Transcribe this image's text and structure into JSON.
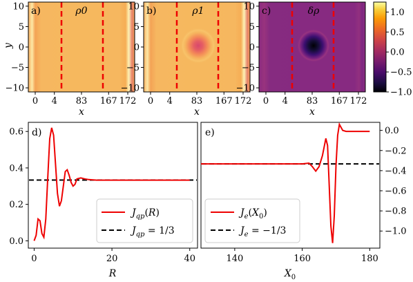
{
  "colors": {
    "curve": "#ee0000",
    "dashed_ref": "#000000",
    "dashed_lines": "#ee0000",
    "cmap": [
      "#000004",
      "#3b0f70",
      "#8c2981",
      "#de4968",
      "#fe9f6d",
      "#fcfdbf"
    ]
  },
  "chart_data": [
    {
      "type": "heatmap",
      "panel_label": "a)",
      "title": "ρ0",
      "xlabel": "x",
      "ylabel": "y",
      "xticks": [
        "0",
        "4",
        "83",
        "167",
        "172"
      ],
      "yticks": [
        -10,
        -5,
        0,
        5,
        10
      ],
      "ylim": [
        -11,
        11
      ],
      "field": "uniform ≈1.0 with bright edge bands near x=0 and x=172",
      "dashed_x": [
        "4",
        "167"
      ],
      "center_value": 1.0
    },
    {
      "type": "heatmap",
      "panel_label": "b)",
      "title": "ρ1",
      "xlabel": "x",
      "xticks": [
        "0",
        "4",
        "83",
        "167",
        "172"
      ],
      "yticks": [
        -10,
        -5,
        0,
        5,
        10
      ],
      "ylim": [
        -11,
        11
      ],
      "dashed_x": [
        "4",
        "167"
      ],
      "center_value": 0.25
    },
    {
      "type": "heatmap",
      "panel_label": "c)",
      "title": "δρ",
      "xlabel": "x",
      "xticks": [
        "0",
        "4",
        "83",
        "167",
        "172"
      ],
      "yticks": [
        -10,
        -5,
        0,
        5,
        10
      ],
      "ylim": [
        -11,
        11
      ],
      "dashed_x": [
        "4",
        "167"
      ],
      "center_value": -1.0,
      "background_value": 0.0
    },
    {
      "type": "colorbar",
      "ticks": [
        "1.0",
        "0.5",
        "0.0",
        "−0.5",
        "−1.0"
      ],
      "tick_values": [
        1.0,
        0.5,
        0.0,
        -0.5,
        -1.0
      ],
      "range": [
        -1.0,
        1.25
      ]
    },
    {
      "type": "line",
      "panel_label": "d)",
      "xlabel": "R",
      "xlim": [
        -1.5,
        42
      ],
      "ylim": [
        -0.04,
        0.65
      ],
      "xticks": [
        "0",
        "20",
        "40"
      ],
      "xtick_values": [
        0,
        20,
        40
      ],
      "yticks": [
        "0.0",
        "0.2",
        "0.4",
        "0.6"
      ],
      "ytick_values": [
        0.0,
        0.2,
        0.4,
        0.6
      ],
      "legend_position": "lower-right",
      "series": [
        {
          "name": "Jqp(R)",
          "x": [
            0,
            0.5,
            1,
            1.5,
            2,
            2.5,
            3,
            3.5,
            4,
            4.5,
            5,
            5.5,
            6,
            6.5,
            7,
            7.5,
            8,
            8.5,
            9,
            9.5,
            10,
            10.5,
            11,
            12,
            13,
            14,
            16,
            18,
            20,
            25,
            30,
            35,
            40
          ],
          "y": [
            0.0,
            0.03,
            0.12,
            0.11,
            0.04,
            0.02,
            0.12,
            0.35,
            0.56,
            0.62,
            0.58,
            0.42,
            0.26,
            0.19,
            0.22,
            0.3,
            0.38,
            0.39,
            0.36,
            0.32,
            0.3,
            0.31,
            0.34,
            0.345,
            0.34,
            0.336,
            0.333,
            0.333,
            0.333,
            0.333,
            0.333,
            0.333,
            0.333
          ]
        },
        {
          "name": "Jqp = 1/3",
          "constant": 0.3333
        }
      ],
      "legend": [
        "J_qp(R)",
        "J_qp = 1/3"
      ]
    },
    {
      "type": "line",
      "panel_label": "e)",
      "xlabel": "X0",
      "xlim": [
        130,
        183
      ],
      "ylim": [
        -1.17,
        0.08
      ],
      "xticks": [
        "140",
        "160",
        "180"
      ],
      "xtick_values": [
        140,
        160,
        180
      ],
      "yticks": [
        "0.0",
        "−0.2",
        "−0.4",
        "−0.6",
        "−0.8",
        "−1.0"
      ],
      "ytick_values": [
        0.0,
        -0.2,
        -0.4,
        -0.6,
        -0.8,
        -1.0
      ],
      "y_axis_side": "right",
      "legend_position": "lower-left",
      "series": [
        {
          "name": "Je(X0)",
          "x": [
            130,
            140,
            150,
            158,
            160,
            162,
            163,
            164,
            165,
            166,
            167,
            167.5,
            168,
            168.5,
            169,
            169.5,
            170,
            170.5,
            171,
            172,
            173,
            175,
            180
          ],
          "y": [
            -0.333,
            -0.333,
            -0.333,
            -0.333,
            -0.333,
            -0.325,
            -0.36,
            -0.405,
            -0.36,
            -0.25,
            -0.08,
            -0.15,
            -0.55,
            -0.95,
            -1.12,
            -0.85,
            -0.35,
            -0.05,
            0.06,
            0.0,
            -0.01,
            -0.01,
            -0.01
          ]
        },
        {
          "name": "Je = −1/3",
          "constant": -0.3333
        }
      ],
      "legend": [
        "J_e(X_0)",
        "J_e = −1/3"
      ]
    }
  ]
}
